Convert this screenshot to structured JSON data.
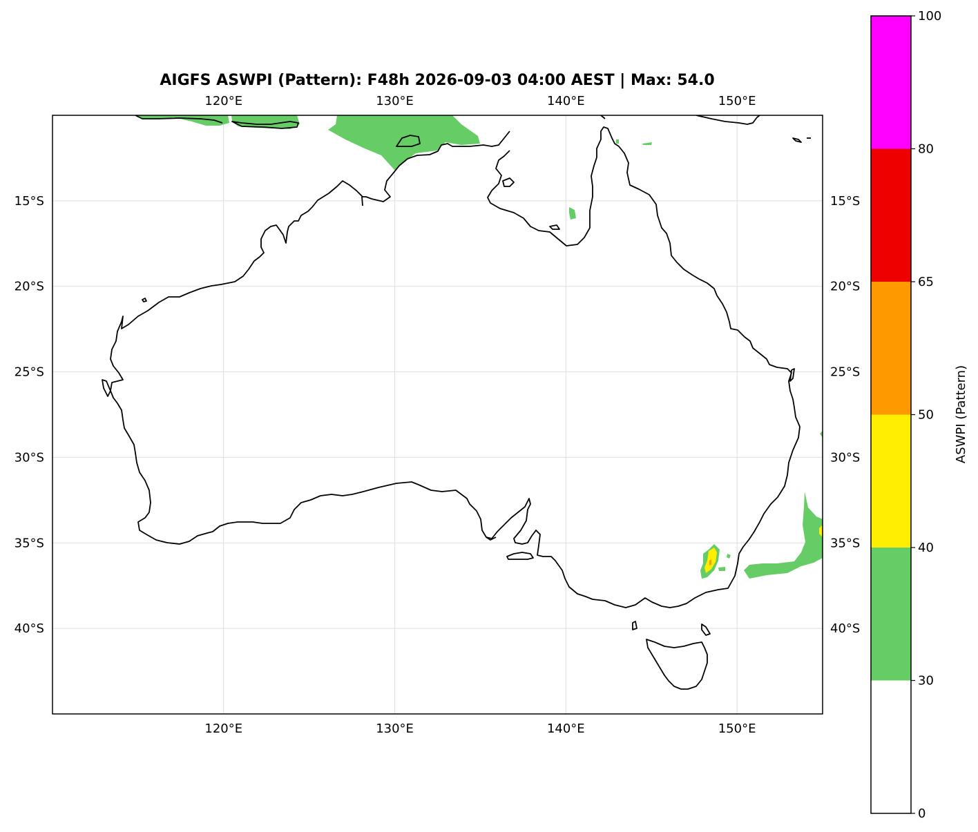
{
  "title": "AIGFS ASWPI (Pattern): F48h 2026-09-03 04:00 AEST | Max: 54.0",
  "map": {
    "lon_range": [
      110,
      155
    ],
    "lat_range": [
      -45,
      -10
    ],
    "lon_ticks": [
      {
        "value": 120,
        "label": "120°E"
      },
      {
        "value": 130,
        "label": "130°E"
      },
      {
        "value": 140,
        "label": "140°E"
      },
      {
        "value": 150,
        "label": "150°E"
      }
    ],
    "lat_ticks": [
      {
        "value": -15,
        "label": "15°S"
      },
      {
        "value": -20,
        "label": "20°S"
      },
      {
        "value": -25,
        "label": "25°S"
      },
      {
        "value": -30,
        "label": "30°S"
      },
      {
        "value": -35,
        "label": "35°S"
      },
      {
        "value": -40,
        "label": "40°S"
      }
    ],
    "gridlines": true,
    "colors": {
      "land_outline": "#000000",
      "grid": "#dddddd",
      "field_30_40": "#66cc66",
      "field_40_50": "#ffee00",
      "field_50_65": "#ff9900"
    }
  },
  "colorbar": {
    "label": "ASWPI (Pattern)",
    "bins": [
      {
        "from": 0,
        "to": 30,
        "color": "#ffffff"
      },
      {
        "from": 30,
        "to": 40,
        "color": "#66cc66"
      },
      {
        "from": 40,
        "to": 50,
        "color": "#ffee00"
      },
      {
        "from": 50,
        "to": 65,
        "color": "#ff9900"
      },
      {
        "from": 65,
        "to": 80,
        "color": "#ee0000"
      },
      {
        "from": 80,
        "to": 100,
        "color": "#ff00ff"
      }
    ],
    "tick_labels": [
      "0",
      "30",
      "40",
      "50",
      "65",
      "80",
      "100"
    ]
  }
}
